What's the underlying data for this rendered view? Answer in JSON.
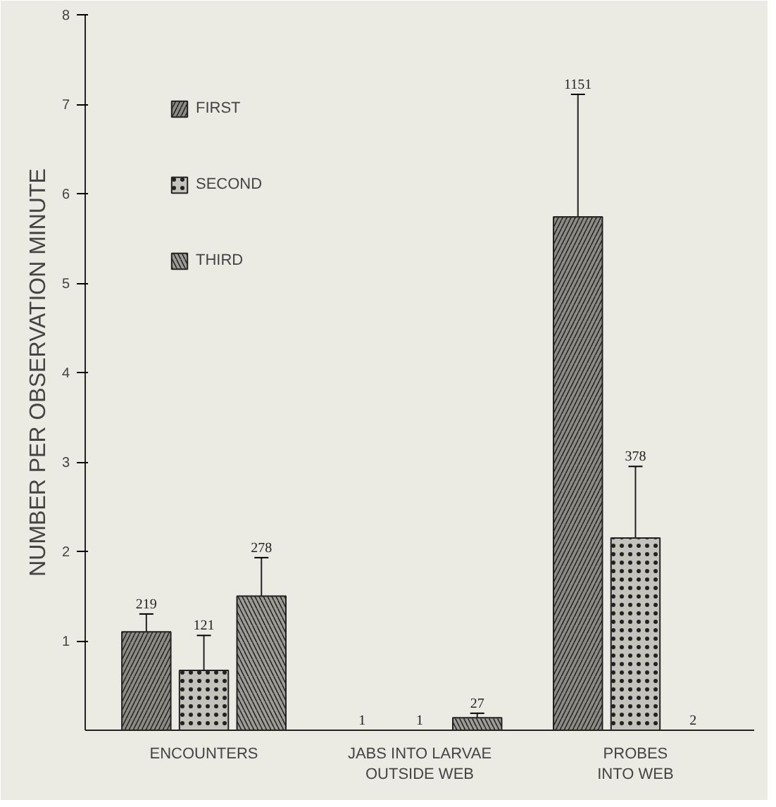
{
  "chart_data": {
    "type": "bar",
    "ylabel": "NUMBER PER OBSERVATION MINUTE",
    "categories": [
      "ENCOUNTERS",
      "JABS INTO LARVAE\nOUTSIDE WEB",
      "PROBES\nINTO WEB"
    ],
    "series": [
      {
        "name": "FIRST",
        "color": "#8c8b85",
        "values": [
          1.1,
          0,
          5.74
        ],
        "errors": [
          0.2,
          null,
          1.37
        ]
      },
      {
        "name": "SECOND",
        "color": "#c4c3bb",
        "values": [
          0.67,
          0,
          2.15
        ],
        "errors": [
          0.39,
          null,
          0.8
        ]
      },
      {
        "name": "THIRD",
        "color": "#9d9c96",
        "values": [
          1.5,
          0.14,
          0
        ],
        "errors": [
          0.43,
          0.05,
          null
        ]
      }
    ],
    "annotations": [
      "219",
      "121",
      "278",
      "1",
      "1",
      "27",
      "1151",
      "378",
      "2"
    ],
    "ylim": [
      0,
      8
    ],
    "yticks": [
      1,
      2,
      3,
      4,
      5,
      6,
      7,
      8
    ],
    "grid": false,
    "legend": "top left"
  }
}
